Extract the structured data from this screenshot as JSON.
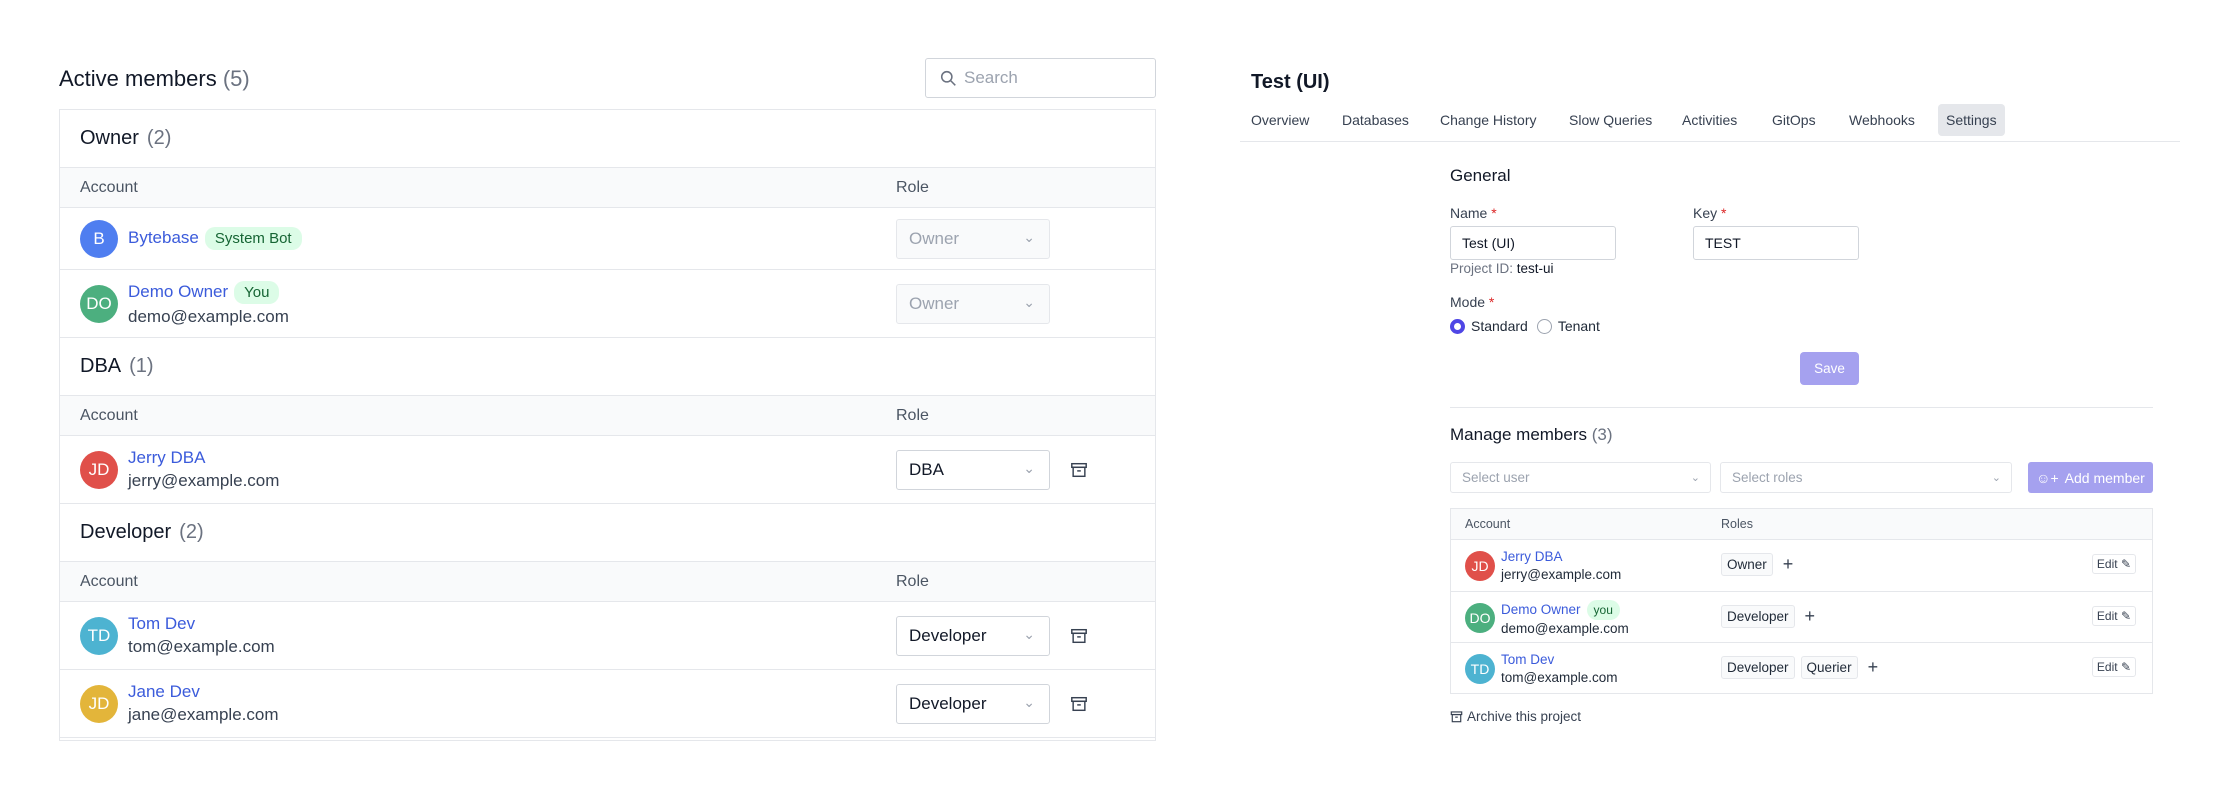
{
  "left": {
    "title": "Active members",
    "count": "(5)",
    "search_placeholder": "Search",
    "columns": {
      "account": "Account",
      "role": "Role"
    },
    "groups": [
      {
        "name": "Owner",
        "count": "(2)",
        "members": [
          {
            "initials": "B",
            "name": "Bytebase",
            "badge": "System Bot",
            "email": "",
            "role": "Owner",
            "color": "#4f7ef0",
            "disabled": true
          },
          {
            "initials": "DO",
            "name": "Demo Owner",
            "badge": "You",
            "email": "demo@example.com",
            "role": "Owner",
            "color": "#4caf7f",
            "disabled": true
          }
        ]
      },
      {
        "name": "DBA",
        "count": "(1)",
        "members": [
          {
            "initials": "JD",
            "name": "Jerry DBA",
            "email": "jerry@example.com",
            "role": "DBA",
            "color": "#e0504a"
          }
        ]
      },
      {
        "name": "Developer",
        "count": "(2)",
        "members": [
          {
            "initials": "TD",
            "name": "Tom Dev",
            "email": "tom@example.com",
            "role": "Developer",
            "color": "#4db3d1"
          },
          {
            "initials": "JD",
            "name": "Jane Dev",
            "email": "jane@example.com",
            "role": "Developer",
            "color": "#e3b53a"
          }
        ]
      }
    ]
  },
  "right": {
    "title": "Test (UI)",
    "tabs": [
      "Overview",
      "Databases",
      "Change History",
      "Slow Queries",
      "Activities",
      "GitOps",
      "Webhooks",
      "Settings"
    ],
    "active_tab": "Settings",
    "general": {
      "heading": "General",
      "name_label": "Name",
      "name_value": "Test (UI)",
      "key_label": "Key",
      "key_value": "TEST",
      "project_id_label": "Project ID:",
      "project_id": "test-ui",
      "mode_label": "Mode",
      "modes": [
        "Standard",
        "Tenant"
      ],
      "selected_mode": "Standard",
      "save": "Save",
      "required": "*"
    },
    "manage": {
      "heading": "Manage members",
      "count": "(3)",
      "select_user": "Select user",
      "select_roles": "Select roles",
      "add_member": "Add member",
      "columns": {
        "account": "Account",
        "roles": "Roles"
      },
      "members": [
        {
          "initials": "JD",
          "name": "Jerry DBA",
          "email": "jerry@example.com",
          "roles": [
            "Owner"
          ],
          "color": "#e0504a"
        },
        {
          "initials": "DO",
          "name": "Demo Owner",
          "badge": "you",
          "email": "demo@example.com",
          "roles": [
            "Developer"
          ],
          "color": "#4caf7f"
        },
        {
          "initials": "TD",
          "name": "Tom Dev",
          "email": "tom@example.com",
          "roles": [
            "Developer",
            "Querier"
          ],
          "color": "#4db3d1"
        }
      ],
      "edit": "Edit",
      "archive": "Archive this project"
    },
    "accent": "#4f46e5"
  }
}
